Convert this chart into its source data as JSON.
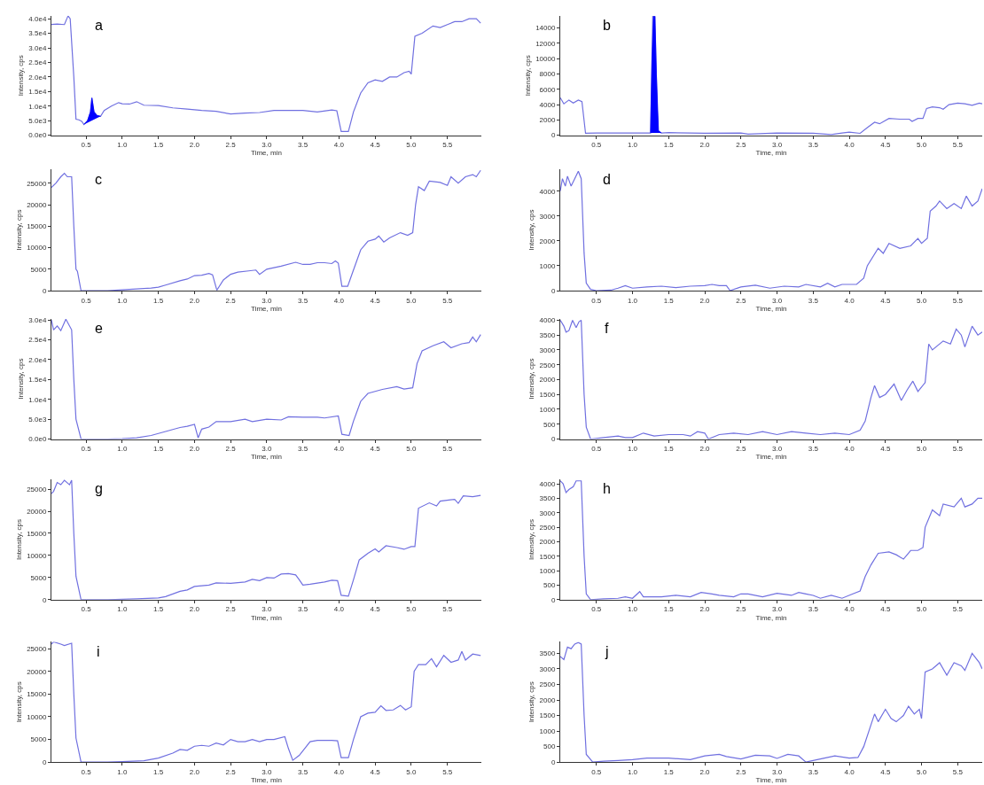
{
  "chart_data": [
    {
      "type": "line",
      "annotations": [
        "a"
      ],
      "xlabel": "Time, min",
      "ylabel": "Intensity, cps",
      "xlim": [
        0.02,
        5.97
      ],
      "ylim": [
        0,
        41000
      ],
      "xticks": [
        0.5,
        {
          "value": 1,
          "label": "1.0"
        },
        1.5,
        {
          "value": 2,
          "label": "2.0"
        },
        2.5,
        {
          "value": 3,
          "label": "3.0"
        },
        3.5,
        {
          "value": 4,
          "label": "4.0"
        },
        4.5,
        {
          "value": 5,
          "label": "5.0"
        },
        5.5
      ],
      "yticks": [
        {
          "value": 0,
          "label": "0.0e0"
        },
        {
          "value": 5000,
          "label": "5.0e3"
        },
        {
          "value": 10000,
          "label": "1.0e4"
        },
        {
          "value": 15000,
          "label": "1.5e4"
        },
        {
          "value": 20000,
          "label": "2.0e4"
        },
        {
          "value": 25000,
          "label": "2.5e4"
        },
        {
          "value": 30000,
          "label": "3.0e4"
        },
        {
          "value": 35000,
          "label": "3.5e4"
        },
        {
          "value": 40000,
          "label": "4.0e4"
        }
      ],
      "series": [
        {
          "color": "#7070e0",
          "x": [
            0.02,
            0.1,
            0.2,
            0.25,
            0.28,
            0.33,
            0.36,
            0.4,
            0.44,
            0.47,
            0.52,
            0.56,
            0.58,
            0.61,
            0.65,
            0.7,
            0.75,
            0.85,
            0.95,
            1.0,
            1.1,
            1.2,
            1.3,
            1.5,
            1.7,
            1.9,
            2.1,
            2.3,
            2.5,
            2.7,
            2.9,
            3.1,
            3.3,
            3.5,
            3.7,
            3.9,
            3.97,
            4.03,
            4.13,
            4.2,
            4.3,
            4.4,
            4.5,
            4.6,
            4.7,
            4.8,
            4.9,
            4.97,
            5.0,
            5.05,
            5.15,
            5.3,
            5.4,
            5.5,
            5.6,
            5.7,
            5.8,
            5.9,
            5.96
          ],
          "values": [
            38000,
            38200,
            38000,
            41000,
            40000,
            20000,
            5500,
            5300,
            4800,
            3700,
            5000,
            8000,
            12800,
            8000,
            6800,
            6500,
            8500,
            10000,
            11200,
            10800,
            10700,
            11500,
            10300,
            10200,
            9400,
            9000,
            8500,
            8200,
            7300,
            7600,
            7800,
            8500,
            8500,
            8500,
            8000,
            8700,
            8400,
            1300,
            1300,
            8000,
            14500,
            18000,
            19000,
            18500,
            20000,
            20000,
            21500,
            22000,
            21000,
            34000,
            35000,
            37500,
            37000,
            38000,
            39000,
            39000,
            40000,
            40000,
            38500
          ]
        },
        {
          "type": "area",
          "color": "#0000ff",
          "x": [
            0.47,
            0.52,
            0.56,
            0.58,
            0.61,
            0.65,
            0.7
          ],
          "values": [
            3700,
            5000,
            8000,
            12800,
            8000,
            6800,
            6500
          ]
        }
      ]
    },
    {
      "type": "line",
      "annotations": [
        "b"
      ],
      "xlabel": "Time, min",
      "ylabel": "Intensity, cps",
      "xlim": [
        0.0,
        5.84
      ],
      "ylim": [
        0,
        15600
      ],
      "xticks": [
        0.5,
        {
          "value": 1,
          "label": "1.0"
        },
        1.5,
        {
          "value": 2,
          "label": "2.0"
        },
        2.5,
        {
          "value": 3,
          "label": "3.0"
        },
        3.5,
        {
          "value": 4,
          "label": "4.0"
        },
        4.5,
        {
          "value": 5,
          "label": "5.0"
        },
        5.5
      ],
      "yticks": [
        0,
        2000,
        4000,
        6000,
        8000,
        10000,
        12000,
        14000
      ],
      "series": [
        {
          "color": "#7070e0",
          "x": [
            0.0,
            0.05,
            0.12,
            0.18,
            0.25,
            0.3,
            0.35,
            0.5,
            1.0,
            1.2,
            1.25,
            1.28,
            1.31,
            1.35,
            1.4,
            1.5,
            2.0,
            2.5,
            2.6,
            3.0,
            3.5,
            3.75,
            3.9,
            4.0,
            4.15,
            4.25,
            4.35,
            4.42,
            4.55,
            4.7,
            4.83,
            4.87,
            4.95,
            5.02,
            5.07,
            5.15,
            5.25,
            5.3,
            5.38,
            5.5,
            5.6,
            5.7,
            5.8,
            5.84
          ],
          "values": [
            4900,
            4100,
            4600,
            4200,
            4600,
            4400,
            250,
            300,
            300,
            300,
            300,
            15500,
            15500,
            500,
            300,
            350,
            250,
            300,
            150,
            300,
            250,
            100,
            300,
            400,
            250,
            1000,
            1700,
            1500,
            2200,
            2100,
            2100,
            1800,
            2200,
            2200,
            3500,
            3700,
            3600,
            3400,
            4000,
            4200,
            4100,
            3900,
            4200,
            4100
          ]
        },
        {
          "type": "area",
          "color": "#0000ff",
          "x": [
            1.25,
            1.27,
            1.29,
            1.31,
            1.33,
            1.36,
            1.4
          ],
          "values": [
            300,
            10000,
            15500,
            15500,
            8000,
            600,
            300
          ]
        }
      ]
    },
    {
      "type": "line",
      "annotations": [
        "c"
      ],
      "xlabel": "Time, min",
      "ylabel": "Intensity, cps",
      "xlim": [
        0.02,
        5.97
      ],
      "ylim": [
        0,
        28200
      ],
      "xticks": [
        0.5,
        {
          "value": 1,
          "label": "1.0"
        },
        1.5,
        {
          "value": 2,
          "label": "2.0"
        },
        2.5,
        {
          "value": 3,
          "label": "3.0"
        },
        3.5,
        {
          "value": 4,
          "label": "4.0"
        },
        4.5,
        {
          "value": 5,
          "label": "5.0"
        },
        5.5
      ],
      "yticks": [
        0,
        5000,
        10000,
        15000,
        20000,
        25000
      ],
      "series": [
        {
          "color": "#7070e0",
          "x": [
            0.02,
            0.08,
            0.15,
            0.2,
            0.24,
            0.3,
            0.33,
            0.36,
            0.38,
            0.43,
            0.6,
            0.8,
            1.0,
            1.2,
            1.4,
            1.5,
            1.6,
            1.8,
            1.9,
            2.0,
            2.1,
            2.2,
            2.25,
            2.31,
            2.4,
            2.5,
            2.6,
            2.75,
            2.85,
            2.9,
            3.0,
            3.2,
            3.4,
            3.5,
            3.6,
            3.7,
            3.8,
            3.9,
            3.95,
            3.99,
            4.04,
            4.12,
            4.2,
            4.3,
            4.4,
            4.5,
            4.55,
            4.62,
            4.7,
            4.85,
            4.95,
            5.02,
            5.06,
            5.1,
            5.18,
            5.25,
            5.4,
            5.5,
            5.55,
            5.65,
            5.75,
            5.85,
            5.9,
            5.96
          ],
          "values": [
            24000,
            25000,
            26500,
            27300,
            26500,
            26500,
            15000,
            5000,
            4500,
            0,
            0,
            0,
            200,
            400,
            600,
            800,
            1300,
            2300,
            2700,
            3500,
            3600,
            4000,
            3700,
            100,
            2500,
            3800,
            4300,
            4600,
            4800,
            3800,
            5000,
            5700,
            6600,
            6100,
            6100,
            6500,
            6500,
            6300,
            6900,
            6400,
            1000,
            1000,
            4800,
            9500,
            11500,
            12000,
            12700,
            11300,
            12300,
            13500,
            12900,
            13500,
            20000,
            24200,
            23300,
            25500,
            25200,
            24500,
            26500,
            25000,
            26500,
            27000,
            26500,
            28000
          ]
        }
      ]
    },
    {
      "type": "line",
      "annotations": [
        "d"
      ],
      "xlabel": "Time, min",
      "ylabel": "Intensity, cps",
      "xlim": [
        0.0,
        5.84
      ],
      "ylim": [
        0,
        4870
      ],
      "xticks": [
        0.5,
        {
          "value": 1,
          "label": "1.0"
        },
        1.5,
        {
          "value": 2,
          "label": "2.0"
        },
        2.5,
        {
          "value": 3,
          "label": "3.0"
        },
        3.5,
        {
          "value": 4,
          "label": "4.0"
        },
        4.5,
        {
          "value": 5,
          "label": "5.0"
        },
        5.5
      ],
      "yticks": [
        0,
        1000,
        2000,
        3000,
        4000
      ],
      "series": [
        {
          "color": "#7070e0",
          "x": [
            0.0,
            0.03,
            0.07,
            0.1,
            0.15,
            0.2,
            0.25,
            0.29,
            0.33,
            0.36,
            0.42,
            0.5,
            0.7,
            0.8,
            0.9,
            1.0,
            1.2,
            1.4,
            1.6,
            1.8,
            2.0,
            2.1,
            2.2,
            2.3,
            2.35,
            2.5,
            2.7,
            2.9,
            3.1,
            3.3,
            3.4,
            3.6,
            3.7,
            3.8,
            3.9,
            4.1,
            4.2,
            4.25,
            4.4,
            4.47,
            4.55,
            4.7,
            4.85,
            4.95,
            5.0,
            5.08,
            5.12,
            5.2,
            5.25,
            5.35,
            5.45,
            5.55,
            5.62,
            5.7,
            5.78,
            5.84
          ],
          "values": [
            4000,
            4500,
            4200,
            4600,
            4200,
            4500,
            4800,
            4500,
            1500,
            300,
            50,
            0,
            20,
            100,
            200,
            100,
            150,
            180,
            120,
            180,
            200,
            250,
            200,
            200,
            0,
            150,
            220,
            100,
            180,
            150,
            250,
            150,
            300,
            150,
            250,
            250,
            500,
            1000,
            1700,
            1500,
            1900,
            1700,
            1800,
            2100,
            1900,
            2100,
            3200,
            3400,
            3600,
            3300,
            3500,
            3300,
            3800,
            3400,
            3600,
            4100
          ]
        }
      ]
    },
    {
      "type": "line",
      "annotations": [
        "e"
      ],
      "xlabel": "Time, min",
      "ylabel": "Intensity, cps",
      "xlim": [
        0.02,
        5.97
      ],
      "ylim": [
        0,
        30300
      ],
      "xticks": [
        0.5,
        {
          "value": 1,
          "label": "1.0"
        },
        1.5,
        {
          "value": 2,
          "label": "2.0"
        },
        2.5,
        {
          "value": 3,
          "label": "3.0"
        },
        3.5,
        {
          "value": 4,
          "label": "4.0"
        },
        4.5,
        {
          "value": 5,
          "label": "5.0"
        },
        5.5
      ],
      "yticks": [
        {
          "value": 0,
          "label": "0.0e0"
        },
        {
          "value": 5000,
          "label": "5.0e3"
        },
        {
          "value": 10000,
          "label": "1.0e4"
        },
        {
          "value": 15000,
          "label": "1.5e4"
        },
        {
          "value": 20000,
          "label": "2.0e4"
        },
        {
          "value": 25000,
          "label": "2.5e4"
        },
        {
          "value": 30000,
          "label": "3.0e4"
        }
      ],
      "series": [
        {
          "color": "#7070e0",
          "x": [
            0.02,
            0.05,
            0.1,
            0.15,
            0.22,
            0.3,
            0.33,
            0.36,
            0.43,
            0.8,
            1.0,
            1.2,
            1.4,
            1.6,
            1.8,
            1.9,
            2.0,
            2.05,
            2.1,
            2.2,
            2.3,
            2.5,
            2.7,
            2.8,
            3.0,
            3.2,
            3.3,
            3.5,
            3.7,
            3.8,
            3.99,
            4.04,
            4.14,
            4.2,
            4.3,
            4.4,
            4.6,
            4.8,
            4.9,
            5.02,
            5.08,
            5.15,
            5.3,
            5.45,
            5.55,
            5.7,
            5.8,
            5.85,
            5.9,
            5.96
          ],
          "values": [
            30000,
            27500,
            28500,
            27300,
            30200,
            27500,
            15000,
            5000,
            0,
            0,
            100,
            300,
            900,
            1900,
            2900,
            3200,
            3700,
            300,
            2500,
            3000,
            4400,
            4400,
            5000,
            4400,
            5000,
            4800,
            5600,
            5500,
            5500,
            5300,
            5800,
            1200,
            900,
            4500,
            9500,
            11500,
            12500,
            13200,
            12600,
            12900,
            19000,
            22200,
            23500,
            24500,
            23000,
            24000,
            24300,
            25700,
            24500,
            26300
          ]
        }
      ]
    },
    {
      "type": "line",
      "annotations": [
        "f"
      ],
      "xlabel": "Time, min",
      "ylabel": "Intensity, cps",
      "xlim": [
        0.0,
        5.84
      ],
      "ylim": [
        0,
        4050
      ],
      "xticks": [
        0.5,
        {
          "value": 1,
          "label": "1.0"
        },
        1.5,
        {
          "value": 2,
          "label": "2.0"
        },
        2.5,
        {
          "value": 3,
          "label": "3.0"
        },
        3.5,
        {
          "value": 4,
          "label": "4.0"
        },
        4.5,
        {
          "value": 5,
          "label": "5.0"
        },
        5.5
      ],
      "yticks": [
        0,
        500,
        1000,
        1500,
        2000,
        2500,
        3000,
        3500,
        4000
      ],
      "series": [
        {
          "color": "#7070e0",
          "x": [
            0.0,
            0.05,
            0.08,
            0.12,
            0.17,
            0.22,
            0.26,
            0.29,
            0.33,
            0.36,
            0.42,
            0.6,
            0.8,
            0.9,
            1.0,
            1.15,
            1.3,
            1.5,
            1.7,
            1.8,
            1.9,
            2.0,
            2.05,
            2.2,
            2.4,
            2.6,
            2.8,
            3.0,
            3.2,
            3.4,
            3.6,
            3.8,
            4.0,
            4.15,
            4.22,
            4.3,
            4.35,
            4.42,
            4.5,
            4.62,
            4.72,
            4.8,
            4.88,
            4.95,
            5.05,
            5.1,
            5.15,
            5.3,
            5.4,
            5.48,
            5.55,
            5.6,
            5.7,
            5.78,
            5.84
          ],
          "values": [
            4000,
            3800,
            3600,
            3650,
            4000,
            3750,
            3950,
            4000,
            1500,
            400,
            0,
            50,
            100,
            50,
            50,
            200,
            100,
            150,
            150,
            100,
            250,
            200,
            0,
            150,
            200,
            150,
            250,
            150,
            250,
            200,
            150,
            200,
            150,
            300,
            600,
            1400,
            1800,
            1400,
            1500,
            1850,
            1300,
            1650,
            1950,
            1600,
            1900,
            3200,
            3000,
            3300,
            3200,
            3700,
            3500,
            3100,
            3800,
            3500,
            3600
          ]
        }
      ]
    },
    {
      "type": "line",
      "annotations": [
        "g"
      ],
      "xlabel": "Time, min",
      "ylabel": "Intensity, cps",
      "xlim": [
        0.02,
        5.97
      ],
      "ylim": [
        0,
        27200
      ],
      "xticks": [
        0.5,
        {
          "value": 1,
          "label": "1.0"
        },
        1.5,
        {
          "value": 2,
          "label": "2.0"
        },
        2.5,
        {
          "value": 3,
          "label": "3.0"
        },
        3.5,
        {
          "value": 4,
          "label": "4.0"
        },
        4.5,
        {
          "value": 5,
          "label": "5.0"
        },
        5.5
      ],
      "yticks": [
        0,
        5000,
        10000,
        15000,
        20000,
        25000
      ],
      "series": [
        {
          "color": "#7070e0",
          "x": [
            0.02,
            0.05,
            0.1,
            0.15,
            0.2,
            0.27,
            0.3,
            0.33,
            0.36,
            0.43,
            0.8,
            1.0,
            1.2,
            1.5,
            1.6,
            1.8,
            1.9,
            2.0,
            2.2,
            2.3,
            2.5,
            2.7,
            2.8,
            2.9,
            3.0,
            3.1,
            3.2,
            3.3,
            3.4,
            3.45,
            3.5,
            3.6,
            3.8,
            3.9,
            3.98,
            4.03,
            4.13,
            4.2,
            4.28,
            4.4,
            4.5,
            4.55,
            4.65,
            4.8,
            4.9,
            5.0,
            5.05,
            5.1,
            5.25,
            5.35,
            5.4,
            5.6,
            5.65,
            5.72,
            5.85,
            5.96
          ],
          "values": [
            24000,
            24500,
            26500,
            26000,
            27000,
            26000,
            27000,
            15000,
            5300,
            0,
            0,
            100,
            200,
            400,
            700,
            1900,
            2200,
            3000,
            3300,
            3800,
            3700,
            4000,
            4600,
            4300,
            5000,
            4900,
            5800,
            5900,
            5600,
            4500,
            3300,
            3500,
            4000,
            4400,
            4300,
            1000,
            800,
            4500,
            9000,
            10500,
            11500,
            10800,
            12200,
            11800,
            11400,
            12000,
            12000,
            20700,
            21900,
            21200,
            22300,
            22700,
            21800,
            23500,
            23300,
            23600
          ]
        }
      ]
    },
    {
      "type": "line",
      "annotations": [
        "h"
      ],
      "xlabel": "Time, min",
      "ylabel": "Intensity, cps",
      "xlim": [
        0.0,
        5.84
      ],
      "ylim": [
        0,
        4150
      ],
      "xticks": [
        0.5,
        {
          "value": 1,
          "label": "1.0"
        },
        1.5,
        {
          "value": 2,
          "label": "2.0"
        },
        2.5,
        {
          "value": 3,
          "label": "3.0"
        },
        3.5,
        {
          "value": 4,
          "label": "4.0"
        },
        4.5,
        {
          "value": 5,
          "label": "5.0"
        },
        5.5
      ],
      "yticks": [
        0,
        500,
        1000,
        1500,
        2000,
        2500,
        3000,
        3500,
        4000
      ],
      "series": [
        {
          "color": "#7070e0",
          "x": [
            0.0,
            0.04,
            0.08,
            0.12,
            0.18,
            0.22,
            0.29,
            0.33,
            0.36,
            0.42,
            0.6,
            0.8,
            0.9,
            1.0,
            1.1,
            1.15,
            1.4,
            1.6,
            1.8,
            1.95,
            2.1,
            2.2,
            2.4,
            2.5,
            2.6,
            2.8,
            3.0,
            3.2,
            3.3,
            3.4,
            3.5,
            3.6,
            3.75,
            3.9,
            4.05,
            4.15,
            4.22,
            4.3,
            4.4,
            4.55,
            4.65,
            4.75,
            4.85,
            4.95,
            5.02,
            5.05,
            5.15,
            5.25,
            5.3,
            5.45,
            5.55,
            5.6,
            5.7,
            5.78,
            5.84
          ],
          "values": [
            4100,
            4000,
            3700,
            3800,
            3900,
            4100,
            4100,
            1500,
            200,
            0,
            30,
            50,
            100,
            50,
            280,
            100,
            100,
            150,
            100,
            250,
            200,
            150,
            100,
            200,
            200,
            100,
            220,
            150,
            250,
            200,
            150,
            50,
            150,
            50,
            200,
            300,
            800,
            1200,
            1600,
            1650,
            1550,
            1400,
            1700,
            1700,
            1800,
            2500,
            3100,
            2900,
            3300,
            3200,
            3500,
            3200,
            3300,
            3500,
            3500
          ]
        }
      ]
    },
    {
      "type": "line",
      "annotations": [
        "i"
      ],
      "xlabel": "Time, min",
      "ylabel": "Intensity, cps",
      "xlim": [
        0.02,
        5.97
      ],
      "ylim": [
        0,
        26500
      ],
      "xticks": [
        0.5,
        {
          "value": 1,
          "label": "1.0"
        },
        1.5,
        {
          "value": 2,
          "label": "2.0"
        },
        2.5,
        {
          "value": 3,
          "label": "3.0"
        },
        3.5,
        {
          "value": 4,
          "label": "4.0"
        },
        4.5,
        {
          "value": 5,
          "label": "5.0"
        },
        5.5
      ],
      "yticks": [
        0,
        5000,
        10000,
        15000,
        20000,
        25000
      ],
      "series": [
        {
          "color": "#7070e0",
          "x": [
            0.02,
            0.05,
            0.15,
            0.2,
            0.3,
            0.33,
            0.36,
            0.43,
            0.8,
            1.0,
            1.3,
            1.5,
            1.7,
            1.8,
            1.9,
            2.0,
            2.1,
            2.2,
            2.3,
            2.4,
            2.5,
            2.6,
            2.7,
            2.8,
            2.9,
            3.0,
            3.1,
            3.25,
            3.3,
            3.36,
            3.45,
            3.6,
            3.7,
            3.9,
            3.98,
            4.03,
            4.13,
            4.2,
            4.3,
            4.4,
            4.5,
            4.58,
            4.65,
            4.75,
            4.85,
            4.92,
            5.0,
            5.04,
            5.1,
            5.2,
            5.28,
            5.35,
            5.45,
            5.55,
            5.65,
            5.7,
            5.75,
            5.85,
            5.96
          ],
          "values": [
            26000,
            26500,
            26000,
            25700,
            26200,
            15000,
            5300,
            0,
            0,
            100,
            300,
            900,
            2000,
            2800,
            2600,
            3500,
            3700,
            3500,
            4200,
            3800,
            5000,
            4500,
            4500,
            5000,
            4500,
            5000,
            5000,
            5600,
            3000,
            400,
            1500,
            4500,
            4800,
            4800,
            4700,
            1000,
            1000,
            5000,
            10000,
            10800,
            11000,
            12400,
            11400,
            11500,
            12500,
            11500,
            12200,
            20000,
            21500,
            21500,
            22800,
            21000,
            23500,
            22000,
            22500,
            24400,
            22500,
            23800,
            23500
          ]
        }
      ]
    },
    {
      "type": "line",
      "annotations": [
        "j"
      ],
      "xlabel": "Time, min",
      "ylabel": "Intensity, cps",
      "xlim": [
        0.0,
        5.84
      ],
      "ylim": [
        0,
        3870
      ],
      "xticks": [
        0.5,
        {
          "value": 1,
          "label": "1.0"
        },
        1.5,
        {
          "value": 2,
          "label": "2.0"
        },
        2.5,
        {
          "value": 3,
          "label": "3.0"
        },
        3.5,
        {
          "value": 4,
          "label": "4.0"
        },
        4.5,
        {
          "value": 5,
          "label": "5.0"
        },
        5.5
      ],
      "yticks": [
        0,
        500,
        1000,
        1500,
        2000,
        2500,
        3000,
        3500
      ],
      "series": [
        {
          "color": "#7070e0",
          "x": [
            0.0,
            0.05,
            0.1,
            0.15,
            0.2,
            0.25,
            0.29,
            0.33,
            0.36,
            0.45,
            0.6,
            0.8,
            1.0,
            1.2,
            1.5,
            1.8,
            2.0,
            2.2,
            2.3,
            2.5,
            2.7,
            2.9,
            3.0,
            3.15,
            3.3,
            3.4,
            3.6,
            3.8,
            4.0,
            4.12,
            4.2,
            4.3,
            4.35,
            4.4,
            4.5,
            4.58,
            4.65,
            4.75,
            4.82,
            4.9,
            4.97,
            5.0,
            5.05,
            5.15,
            5.25,
            5.35,
            5.45,
            5.55,
            5.6,
            5.7,
            5.8,
            5.84
          ],
          "values": [
            3400,
            3300,
            3700,
            3650,
            3800,
            3850,
            3800,
            1500,
            250,
            0,
            30,
            50,
            80,
            130,
            130,
            80,
            200,
            250,
            180,
            100,
            220,
            200,
            120,
            250,
            200,
            0,
            100,
            200,
            130,
            150,
            500,
            1200,
            1550,
            1300,
            1700,
            1400,
            1300,
            1500,
            1800,
            1550,
            1700,
            1400,
            2900,
            3000,
            3200,
            2800,
            3200,
            3100,
            2950,
            3500,
            3200,
            3000
          ]
        }
      ]
    }
  ]
}
